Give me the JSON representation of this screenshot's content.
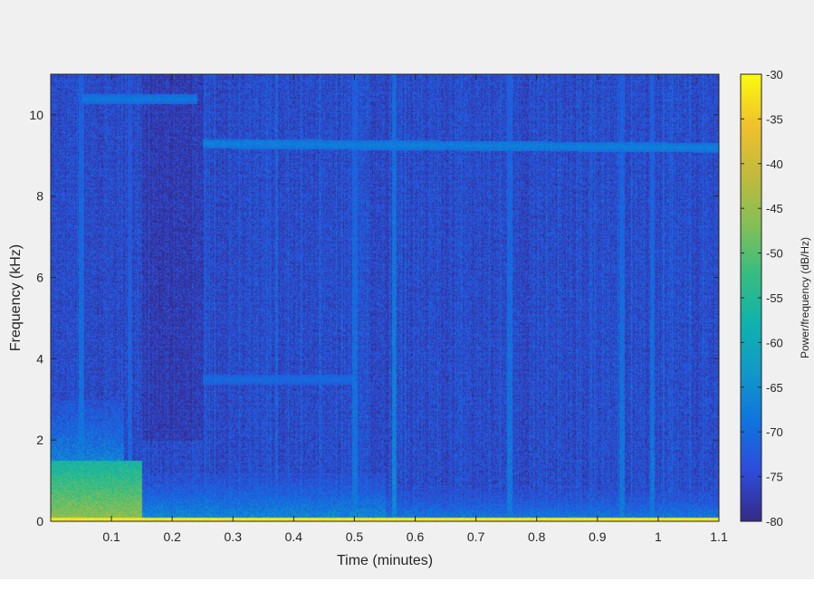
{
  "chart_data": {
    "type": "heatmap",
    "title": "",
    "xlabel": "Time (minutes)",
    "ylabel": "Frequency (kHz)",
    "xlim": [
      0,
      1.1
    ],
    "ylim": [
      0,
      11
    ],
    "x_ticks": [
      {
        "value": 0.1,
        "label": "0.1"
      },
      {
        "value": 0.2,
        "label": "0.2"
      },
      {
        "value": 0.3,
        "label": "0.3"
      },
      {
        "value": 0.4,
        "label": "0.4"
      },
      {
        "value": 0.5,
        "label": "0.5"
      },
      {
        "value": 0.6,
        "label": "0.6"
      },
      {
        "value": 0.7,
        "label": "0.7"
      },
      {
        "value": 0.8,
        "label": "0.8"
      },
      {
        "value": 0.9,
        "label": "0.9"
      },
      {
        "value": 1.0,
        "label": "1"
      },
      {
        "value": 1.1,
        "label": "1.1"
      }
    ],
    "y_ticks": [
      {
        "value": 0,
        "label": "0"
      },
      {
        "value": 2,
        "label": "2"
      },
      {
        "value": 4,
        "label": "4"
      },
      {
        "value": 6,
        "label": "6"
      },
      {
        "value": 8,
        "label": "8"
      },
      {
        "value": 10,
        "label": "10"
      }
    ],
    "colorbar": {
      "label": "Power/frequency (dB/Hz)",
      "range": [
        -80,
        -30
      ],
      "ticks": [
        {
          "value": -30,
          "label": "-30"
        },
        {
          "value": -35,
          "label": "-35"
        },
        {
          "value": -40,
          "label": "-40"
        },
        {
          "value": -45,
          "label": "-45"
        },
        {
          "value": -50,
          "label": "-50"
        },
        {
          "value": -55,
          "label": "-55"
        },
        {
          "value": -60,
          "label": "-60"
        },
        {
          "value": -65,
          "label": "-65"
        },
        {
          "value": -70,
          "label": "-70"
        },
        {
          "value": -75,
          "label": "-75"
        },
        {
          "value": -80,
          "label": "-80"
        }
      ],
      "colormap": "parula",
      "colors": [
        "#352a87",
        "#2e4cd9",
        "#0f73e0",
        "#1199c8",
        "#0fb2ac",
        "#38bd80",
        "#86bf55",
        "#c3ba3b",
        "#f1c22b",
        "#f9fb0e"
      ]
    },
    "grid": false,
    "background_level_db": -75,
    "features": [
      {
        "kind": "tone",
        "t_start": 0.05,
        "t_end": 0.24,
        "freq_khz": 10.4,
        "level_db": -68
      },
      {
        "kind": "tone",
        "t_start": 0.25,
        "t_end": 1.1,
        "freq_khz": 9.3,
        "freq_end_khz": 9.2,
        "level_db": -67
      },
      {
        "kind": "tone",
        "t_start": 0.25,
        "t_end": 0.5,
        "freq_khz": 3.5,
        "level_db": -70
      },
      {
        "kind": "low_band",
        "t_start": 0.0,
        "t_end": 0.15,
        "freq_max_khz": 1.5,
        "level_db": -45
      },
      {
        "kind": "low_band",
        "t_start": 0.15,
        "t_end": 0.55,
        "freq_max_khz": 1.2,
        "level_db": -65
      },
      {
        "kind": "low_band",
        "t_start": 0.55,
        "t_end": 1.1,
        "freq_max_khz": 0.9,
        "level_db": -67
      },
      {
        "kind": "dc_band",
        "t_start": 0.0,
        "t_end": 1.1,
        "freq_max_khz": 0.1,
        "level_db": -32
      },
      {
        "kind": "transient",
        "t": 0.05,
        "level_db": -68
      },
      {
        "kind": "transient",
        "t": 0.13,
        "level_db": -70
      },
      {
        "kind": "transient",
        "t": 0.5,
        "level_db": -68
      },
      {
        "kind": "transient",
        "t": 0.565,
        "level_db": -66
      },
      {
        "kind": "transient",
        "t": 0.755,
        "level_db": -68
      },
      {
        "kind": "transient",
        "t": 0.94,
        "level_db": -68
      },
      {
        "kind": "transient",
        "t": 0.99,
        "level_db": -68
      }
    ]
  }
}
